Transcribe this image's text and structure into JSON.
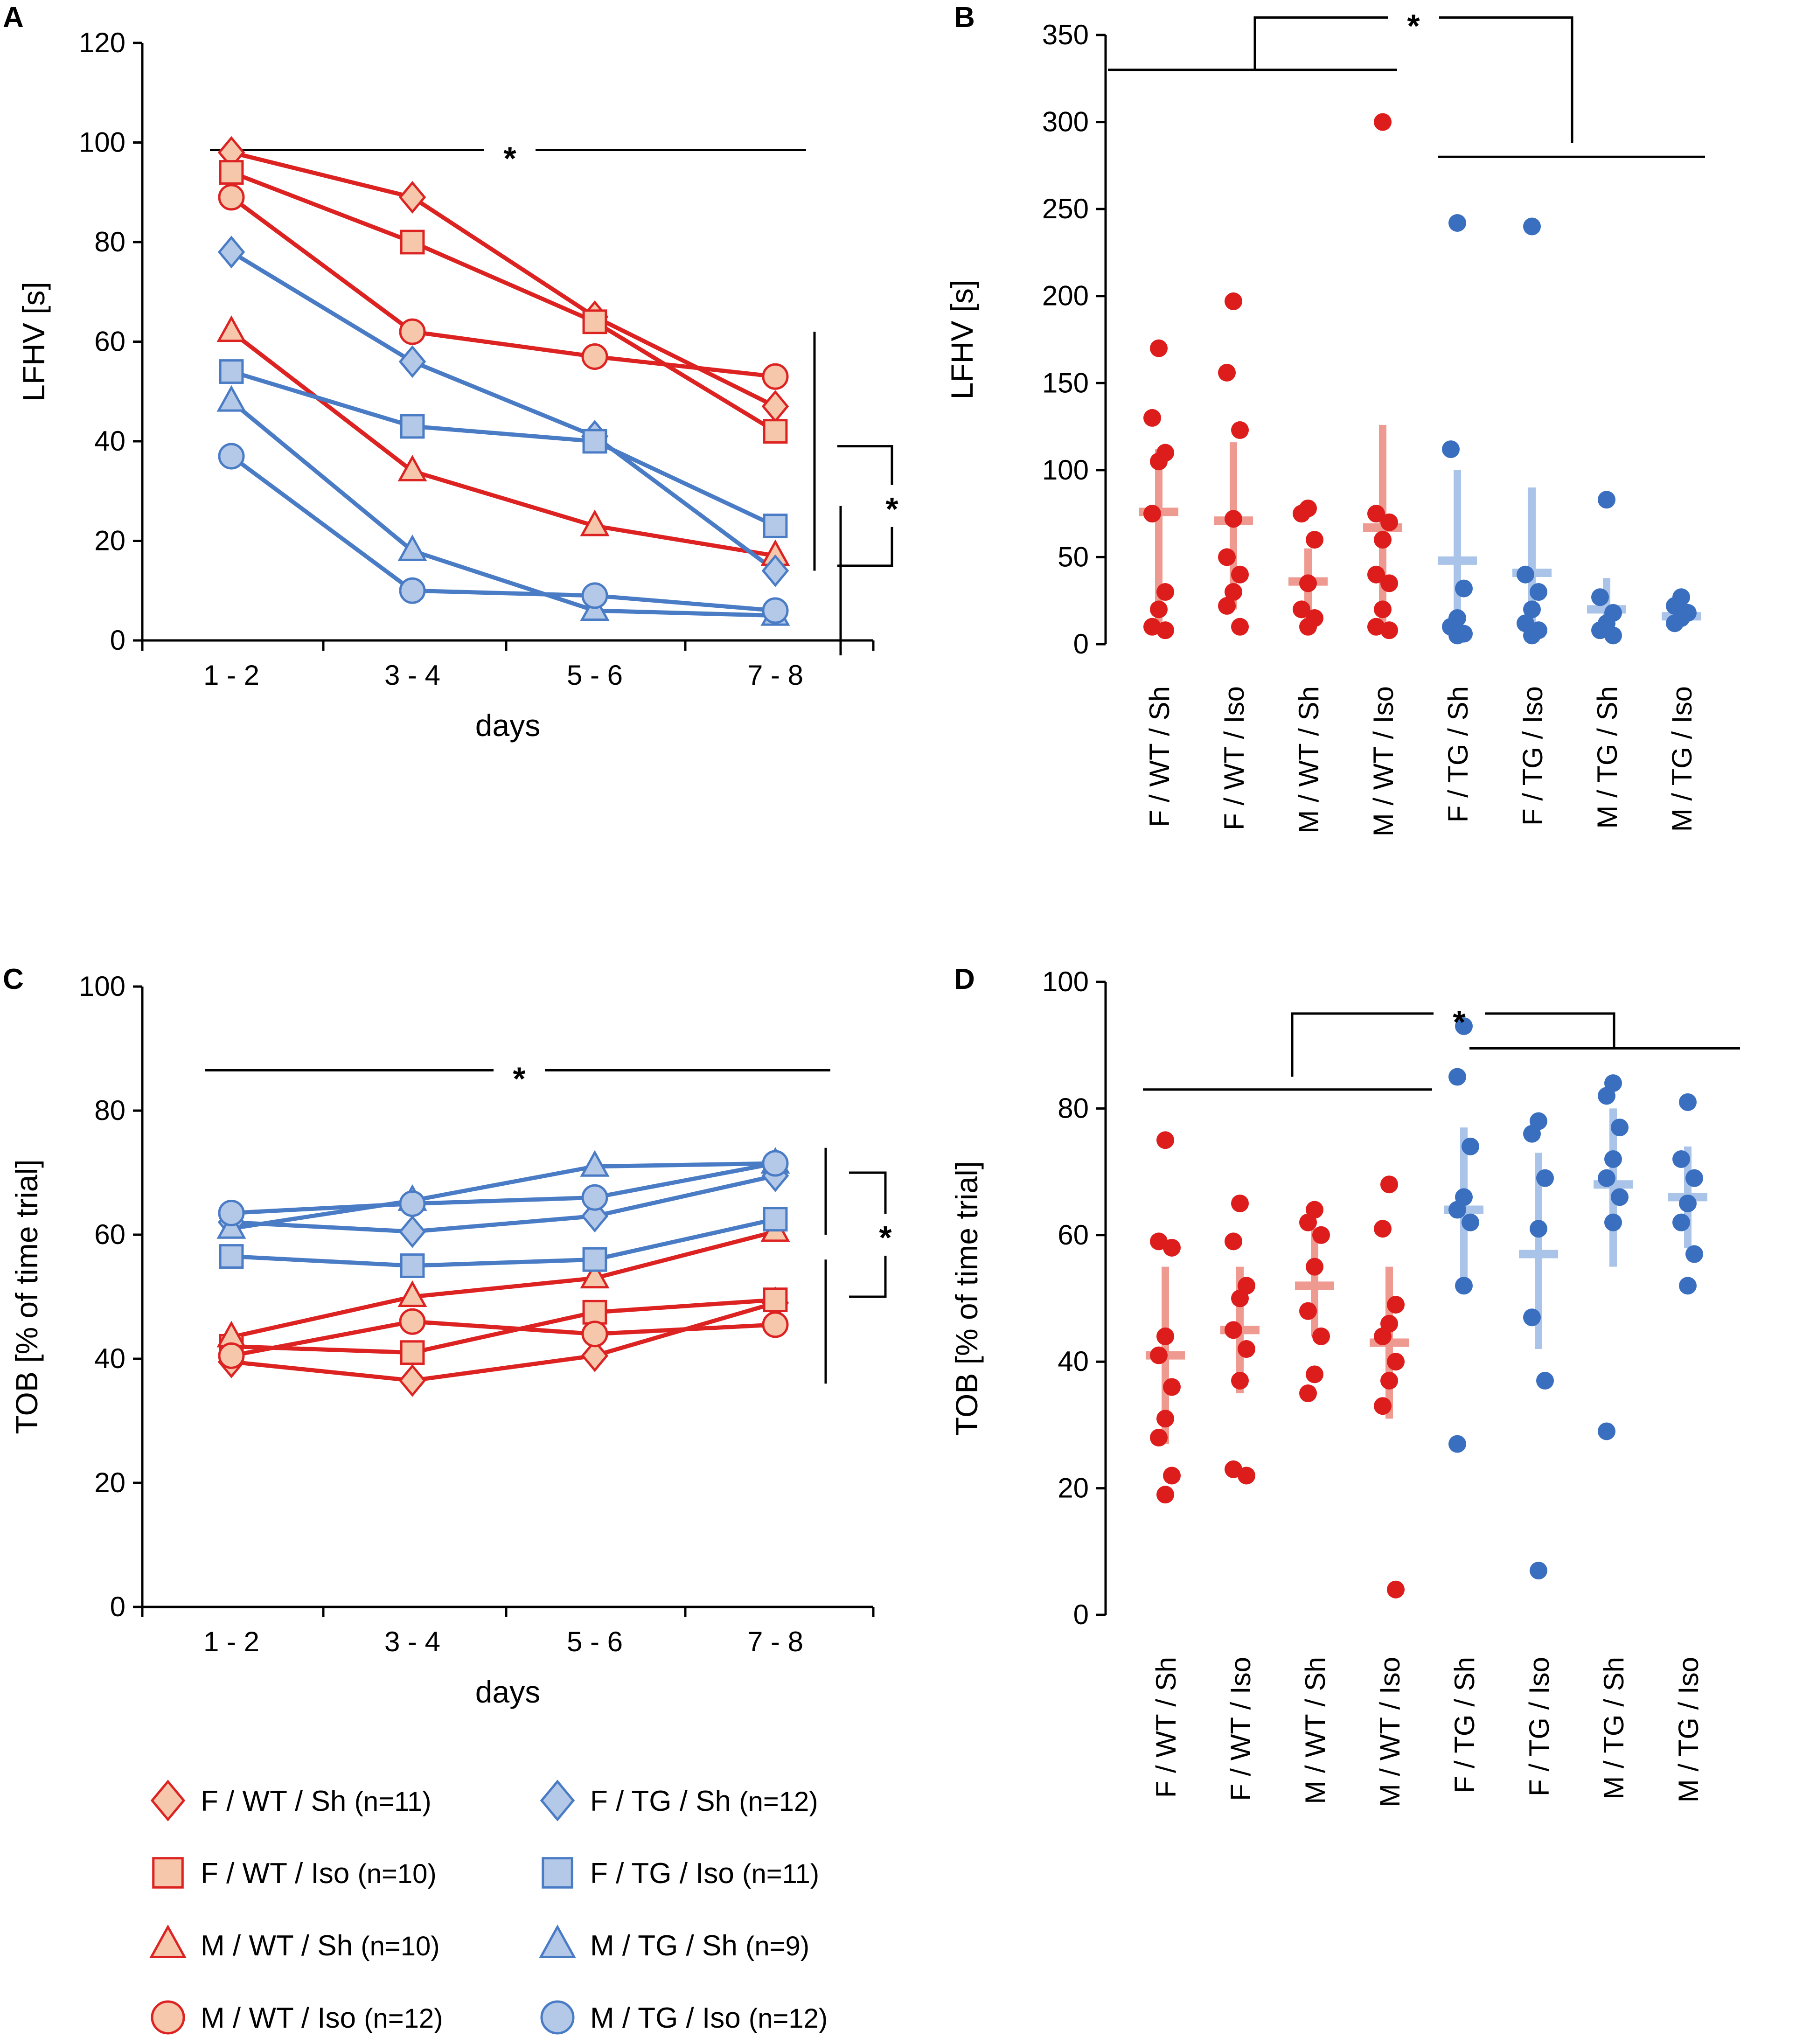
{
  "colors": {
    "wt_stroke": "#dd2222",
    "wt_fill": "#f6c7aa",
    "tg_stroke": "#4a7cc6",
    "tg_fill": "#b4c8e8",
    "wt_dot": "#dd1c1c",
    "tg_dot": "#3a6fc0",
    "wt_mean": "#ee9a90",
    "tg_mean": "#a9c4e8",
    "axis": "#000000"
  },
  "legend": {
    "items": [
      {
        "label": "F / WT / Sh",
        "n": "(n=11)",
        "marker": "diamond",
        "group": "wt"
      },
      {
        "label": "F / TG / Sh",
        "n": "(n=12)",
        "marker": "diamond",
        "group": "tg"
      },
      {
        "label": "F / WT / Iso",
        "n": "(n=10)",
        "marker": "square",
        "group": "wt"
      },
      {
        "label": "F / TG / Iso",
        "n": "(n=11)",
        "marker": "square",
        "group": "tg"
      },
      {
        "label": "M / WT / Sh",
        "n": "(n=10)",
        "marker": "triangle",
        "group": "wt"
      },
      {
        "label": "M / TG / Sh",
        "n": "(n=9)",
        "marker": "triangle",
        "group": "tg"
      },
      {
        "label": "M / WT / Iso",
        "n": "(n=12)",
        "marker": "circle",
        "group": "wt"
      },
      {
        "label": "M / TG / Iso",
        "n": "(n=12)",
        "marker": "circle",
        "group": "tg"
      }
    ]
  },
  "chart_data": [
    {
      "panel": "A",
      "type": "line",
      "xlabel": "days",
      "ylabel": "LFHV [s]",
      "categories": [
        "1 - 2",
        "3 - 4",
        "5 - 6",
        "7 - 8"
      ],
      "ylim": [
        0,
        120
      ],
      "yticks": [
        0,
        20,
        40,
        60,
        80,
        100,
        120
      ],
      "significance": "*",
      "series": [
        {
          "name": "F / WT / Sh",
          "group": "wt",
          "marker": "diamond",
          "values": [
            98,
            89,
            65,
            47
          ]
        },
        {
          "name": "F / WT / Iso",
          "group": "wt",
          "marker": "square",
          "values": [
            94,
            80,
            64,
            42
          ]
        },
        {
          "name": "M / WT / Sh",
          "group": "wt",
          "marker": "triangle",
          "values": [
            62,
            34,
            23,
            17
          ]
        },
        {
          "name": "M / WT / Iso",
          "group": "wt",
          "marker": "circle",
          "values": [
            89,
            62,
            57,
            53
          ]
        },
        {
          "name": "F / TG / Sh",
          "group": "tg",
          "marker": "diamond",
          "values": [
            78,
            56,
            41,
            14
          ]
        },
        {
          "name": "F / TG / Iso",
          "group": "tg",
          "marker": "square",
          "values": [
            54,
            43,
            40,
            23
          ]
        },
        {
          "name": "M / TG / Sh",
          "group": "tg",
          "marker": "triangle",
          "values": [
            48,
            18,
            6,
            5
          ]
        },
        {
          "name": "M / TG / Iso",
          "group": "tg",
          "marker": "circle",
          "values": [
            37,
            10,
            9,
            6
          ]
        }
      ]
    },
    {
      "panel": "B",
      "type": "scatter",
      "ylabel": "LFHV [s]",
      "categories": [
        "F / WT / Sh",
        "F / WT / Iso",
        "M / WT / Sh",
        "M / WT / Iso",
        "F / TG / Sh",
        "F / TG / Iso",
        "M / TG / Sh",
        "M / TG / Iso"
      ],
      "ylim": [
        0,
        350
      ],
      "yticks": [
        0,
        50,
        100,
        150,
        200,
        250,
        300,
        350
      ],
      "significance": "*",
      "groups": [
        {
          "name": "F / WT / Sh",
          "group": "wt",
          "points": [
            170,
            130,
            110,
            105,
            75,
            30,
            20,
            10,
            8
          ],
          "mean": 76,
          "sd_low": 8,
          "sd_high": 112
        },
        {
          "name": "F / WT / Iso",
          "group": "wt",
          "points": [
            197,
            156,
            123,
            72,
            50,
            40,
            30,
            22,
            10
          ],
          "mean": 71,
          "sd_low": 20,
          "sd_high": 116
        },
        {
          "name": "M / WT / Sh",
          "group": "wt",
          "points": [
            78,
            75,
            60,
            35,
            20,
            15,
            10
          ],
          "mean": 36,
          "sd_low": 10,
          "sd_high": 55
        },
        {
          "name": "M / WT / Iso",
          "group": "wt",
          "points": [
            300,
            75,
            70,
            60,
            40,
            35,
            20,
            10,
            8
          ],
          "mean": 67,
          "sd_low": 8,
          "sd_high": 126
        },
        {
          "name": "F / TG / Sh",
          "group": "tg",
          "points": [
            242,
            112,
            32,
            15,
            10,
            6,
            5
          ],
          "mean": 48,
          "sd_low": 5,
          "sd_high": 100
        },
        {
          "name": "F / TG / Iso",
          "group": "tg",
          "points": [
            240,
            40,
            30,
            20,
            12,
            8,
            5
          ],
          "mean": 41,
          "sd_low": 5,
          "sd_high": 90
        },
        {
          "name": "M / TG / Sh",
          "group": "tg",
          "points": [
            83,
            27,
            18,
            12,
            8,
            5
          ],
          "mean": 20,
          "sd_low": 5,
          "sd_high": 38
        },
        {
          "name": "M / TG / Iso",
          "group": "tg",
          "points": [
            27,
            22,
            18,
            15,
            12
          ],
          "mean": 16,
          "sd_low": 12,
          "sd_high": 22
        }
      ]
    },
    {
      "panel": "C",
      "type": "line",
      "xlabel": "days",
      "ylabel": "TOB [% of time trial]",
      "categories": [
        "1 - 2",
        "3 - 4",
        "5 - 6",
        "7 - 8"
      ],
      "ylim": [
        0,
        100
      ],
      "yticks": [
        0,
        20,
        40,
        60,
        80,
        100
      ],
      "significance": "*",
      "series": [
        {
          "name": "F / WT / Sh",
          "group": "wt",
          "marker": "diamond",
          "values": [
            39.5,
            36.5,
            40.5,
            49
          ]
        },
        {
          "name": "F / WT / Iso",
          "group": "wt",
          "marker": "square",
          "values": [
            42,
            41,
            47.5,
            49.5
          ]
        },
        {
          "name": "M / WT / Sh",
          "group": "wt",
          "marker": "triangle",
          "values": [
            43.5,
            50,
            53,
            60.5
          ]
        },
        {
          "name": "M / WT / Iso",
          "group": "wt",
          "marker": "circle",
          "values": [
            40.5,
            46,
            44,
            45.5
          ]
        },
        {
          "name": "F / TG / Sh",
          "group": "tg",
          "marker": "diamond",
          "values": [
            62,
            60.5,
            63,
            69.5
          ]
        },
        {
          "name": "F / TG / Iso",
          "group": "tg",
          "marker": "square",
          "values": [
            56.5,
            55,
            56,
            62.5
          ]
        },
        {
          "name": "M / TG / Sh",
          "group": "tg",
          "marker": "triangle",
          "values": [
            61,
            65.5,
            71,
            71.5
          ]
        },
        {
          "name": "M / TG / Iso",
          "group": "tg",
          "marker": "circle",
          "values": [
            63.5,
            65,
            66,
            71.5
          ]
        }
      ]
    },
    {
      "panel": "D",
      "type": "scatter",
      "ylabel": "TOB [% of time trial]",
      "categories": [
        "F / WT / Sh",
        "F / WT / Iso",
        "M / WT / Sh",
        "M / WT / Iso",
        "F / TG / Sh",
        "F / TG / Iso",
        "M / TG / Sh",
        "M / TG / Iso"
      ],
      "ylim": [
        0,
        100
      ],
      "yticks": [
        0,
        20,
        40,
        60,
        80,
        100
      ],
      "significance": "*",
      "groups": [
        {
          "name": "F / WT / Sh",
          "group": "wt",
          "points": [
            75,
            59,
            58,
            44,
            41,
            36,
            31,
            28,
            22,
            19
          ],
          "mean": 41,
          "sd_low": 27,
          "sd_high": 55
        },
        {
          "name": "F / WT / Iso",
          "group": "wt",
          "points": [
            65,
            59,
            52,
            50,
            45,
            42,
            37,
            23,
            22
          ],
          "mean": 45,
          "sd_low": 35,
          "sd_high": 55
        },
        {
          "name": "M / WT / Sh",
          "group": "wt",
          "points": [
            64,
            62,
            60,
            55,
            48,
            44,
            38,
            35
          ],
          "mean": 52,
          "sd_low": 44,
          "sd_high": 61
        },
        {
          "name": "M / WT / Iso",
          "group": "wt",
          "points": [
            68,
            61,
            49,
            46,
            44,
            40,
            37,
            33,
            4
          ],
          "mean": 43,
          "sd_low": 31,
          "sd_high": 55
        },
        {
          "name": "F / TG / Sh",
          "group": "tg",
          "points": [
            93,
            85,
            74,
            66,
            64,
            62,
            52,
            27
          ],
          "mean": 64,
          "sd_low": 51,
          "sd_high": 77
        },
        {
          "name": "F / TG / Iso",
          "group": "tg",
          "points": [
            78,
            76,
            69,
            61,
            47,
            37,
            7
          ],
          "mean": 57,
          "sd_low": 42,
          "sd_high": 73
        },
        {
          "name": "M / TG / Sh",
          "group": "tg",
          "points": [
            84,
            82,
            77,
            72,
            69,
            66,
            62,
            29
          ],
          "mean": 68,
          "sd_low": 55,
          "sd_high": 80
        },
        {
          "name": "M / TG / Iso",
          "group": "tg",
          "points": [
            81,
            72,
            69,
            65,
            62,
            57,
            52
          ],
          "mean": 66,
          "sd_low": 58,
          "sd_high": 74
        }
      ]
    }
  ]
}
